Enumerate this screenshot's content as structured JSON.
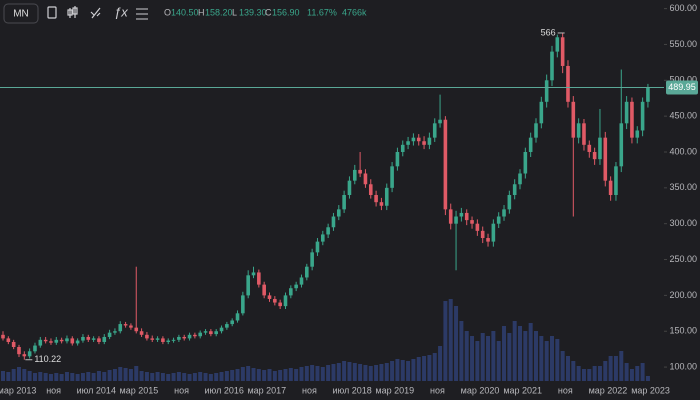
{
  "header": {
    "interval": "MN",
    "o": "O",
    "open": "140.50",
    "h": "H",
    "high": "158.20",
    "l": "L",
    "low": "139.30",
    "c": "C",
    "close": "156.90",
    "change": "11.67%",
    "volume": "4766k"
  },
  "chart_data": {
    "type": "candlestick",
    "up_color": "#3aa68b",
    "down_color": "#e05a66",
    "volume_color": "#2c3a66",
    "price_line_color": "#5aa897",
    "categories": [
      "мар 2013",
      null,
      null,
      null,
      null,
      null,
      null,
      null,
      "ноя",
      null,
      null,
      null,
      null,
      null,
      null,
      null,
      "июл 2014",
      null,
      null,
      null,
      null,
      null,
      null,
      null,
      "мар 2015",
      null,
      null,
      null,
      null,
      null,
      null,
      null,
      "ноя",
      null,
      null,
      null,
      null,
      null,
      null,
      null,
      "июл 2016",
      null,
      null,
      null,
      null,
      null,
      null,
      null,
      "мар 2017",
      null,
      null,
      null,
      null,
      null,
      null,
      null,
      "ноя",
      null,
      null,
      null,
      null,
      null,
      null,
      null,
      "июл 2018",
      null,
      null,
      null,
      null,
      null,
      null,
      null,
      "мар 2019",
      null,
      null,
      null,
      null,
      null,
      null,
      null,
      "ноя",
      null,
      null,
      null,
      null,
      null,
      null,
      null,
      "мар 2020",
      null,
      null,
      null,
      null,
      null,
      null,
      null,
      "мар 2021",
      null,
      null,
      null,
      null,
      null,
      null,
      null,
      "ноя",
      null,
      null,
      null,
      null,
      null,
      null,
      null,
      "мар 2022",
      null,
      null,
      null,
      null,
      null,
      null,
      null,
      "мар 2023",
      null
    ],
    "open": [
      145,
      140,
      135,
      128,
      118,
      115,
      122,
      130,
      138,
      136,
      134,
      138,
      136,
      140,
      133,
      137,
      142,
      138,
      140,
      135,
      142,
      148,
      150,
      160,
      158,
      155,
      150,
      145,
      140,
      138,
      140,
      135,
      137,
      138,
      142,
      140,
      145,
      143,
      148,
      150,
      146,
      150,
      155,
      160,
      165,
      175,
      200,
      228,
      232,
      215,
      200,
      195,
      190,
      185,
      200,
      210,
      215,
      225,
      240,
      260,
      275,
      285,
      295,
      310,
      320,
      340,
      360,
      375,
      370,
      355,
      340,
      330,
      325,
      350,
      380,
      400,
      410,
      415,
      420,
      415,
      410,
      420,
      440,
      445,
      320,
      300,
      310,
      315,
      305,
      300,
      290,
      280,
      275,
      300,
      310,
      320,
      340,
      355,
      370,
      400,
      420,
      440,
      470,
      500,
      540,
      560,
      520,
      470,
      420,
      440,
      410,
      400,
      390,
      420,
      360,
      340,
      380,
      440,
      470,
      420,
      430,
      470
    ],
    "high": [
      150,
      143,
      138,
      131,
      122,
      126,
      134,
      142,
      142,
      140,
      142,
      141,
      144,
      143,
      140,
      146,
      145,
      143,
      143,
      146,
      152,
      154,
      164,
      163,
      161,
      240,
      154,
      149,
      144,
      143,
      143,
      140,
      141,
      145,
      145,
      148,
      148,
      151,
      153,
      153,
      153,
      158,
      163,
      168,
      179,
      205,
      235,
      240,
      236,
      219,
      204,
      199,
      194,
      204,
      214,
      219,
      229,
      244,
      265,
      280,
      290,
      300,
      315,
      326,
      346,
      366,
      382,
      400,
      376,
      362,
      346,
      336,
      356,
      386,
      406,
      416,
      421,
      426,
      425,
      422,
      427,
      447,
      480,
      450,
      328,
      318,
      322,
      320,
      310,
      306,
      296,
      286,
      306,
      316,
      326,
      346,
      362,
      376,
      406,
      427,
      447,
      477,
      508,
      548,
      563.75,
      566,
      528,
      478,
      447,
      446,
      416,
      406,
      460,
      428,
      366,
      386,
      515,
      478,
      476,
      436,
      476,
      495
    ],
    "low": [
      137,
      132,
      125,
      114,
      110.22,
      112,
      119,
      127,
      133,
      131,
      131,
      133,
      133,
      130,
      130,
      134,
      135,
      135,
      132,
      132,
      139,
      145,
      147,
      155,
      152,
      147,
      142,
      137,
      135,
      135,
      132,
      132,
      134,
      135,
      137,
      137,
      140,
      140,
      145,
      143,
      143,
      147,
      152,
      157,
      162,
      172,
      196,
      224,
      211,
      196,
      191,
      186,
      181,
      181,
      196,
      206,
      211,
      221,
      235,
      255,
      270,
      280,
      290,
      305,
      315,
      335,
      355,
      365,
      350,
      335,
      324,
      319,
      319,
      344,
      374,
      394,
      404,
      409,
      409,
      404,
      404,
      414,
      434,
      312,
      292,
      235,
      303,
      298,
      293,
      283,
      273,
      268,
      268,
      294,
      304,
      314,
      334,
      348,
      363,
      393,
      413,
      433,
      462,
      492,
      532,
      510,
      462,
      310,
      412,
      402,
      392,
      382,
      382,
      352,
      332,
      332,
      372,
      432,
      412,
      412,
      422,
      462
    ],
    "close": [
      140,
      135,
      128,
      118,
      115,
      122,
      130,
      138,
      136,
      134,
      138,
      136,
      140,
      133,
      137,
      142,
      138,
      140,
      135,
      142,
      148,
      150,
      160,
      158,
      155,
      150,
      145,
      140,
      138,
      140,
      135,
      137,
      138,
      142,
      140,
      145,
      143,
      148,
      150,
      146,
      150,
      155,
      160,
      165,
      175,
      200,
      228,
      232,
      215,
      200,
      195,
      190,
      185,
      200,
      210,
      215,
      225,
      240,
      260,
      275,
      285,
      295,
      310,
      320,
      340,
      360,
      375,
      370,
      355,
      340,
      330,
      325,
      350,
      380,
      400,
      410,
      415,
      420,
      415,
      410,
      420,
      440,
      445,
      320,
      300,
      310,
      315,
      305,
      300,
      290,
      280,
      275,
      300,
      310,
      320,
      340,
      355,
      370,
      400,
      420,
      440,
      470,
      500,
      540,
      560,
      520,
      470,
      420,
      440,
      410,
      400,
      390,
      420,
      360,
      340,
      380,
      440,
      470,
      420,
      430,
      470,
      489.95
    ],
    "volume": [
      10,
      9,
      12,
      14,
      12,
      10,
      8,
      9,
      8,
      7,
      8,
      7,
      9,
      8,
      7,
      8,
      9,
      8,
      10,
      9,
      11,
      12,
      14,
      13,
      12,
      15,
      10,
      9,
      8,
      9,
      8,
      7,
      8,
      9,
      8,
      7,
      8,
      9,
      8,
      7,
      8,
      9,
      10,
      11,
      12,
      14,
      15,
      13,
      12,
      11,
      12,
      10,
      11,
      12,
      13,
      12,
      14,
      15,
      16,
      15,
      14,
      16,
      17,
      18,
      20,
      19,
      18,
      17,
      16,
      15,
      16,
      17,
      18,
      20,
      22,
      21,
      20,
      22,
      24,
      25,
      26,
      28,
      35,
      80,
      82,
      75,
      60,
      50,
      45,
      40,
      48,
      45,
      50,
      40,
      55,
      48,
      60,
      55,
      50,
      58,
      50,
      45,
      40,
      45,
      42,
      30,
      25,
      20,
      15,
      12,
      12,
      15,
      15,
      20,
      25,
      25,
      30,
      18,
      12,
      15,
      18,
      5
    ],
    "ylim": [
      75,
      612
    ],
    "yticks": [
      {
        "value": 100,
        "label": "100.00"
      },
      {
        "value": 150,
        "label": "150.00"
      },
      {
        "value": 200,
        "label": "200.00"
      },
      {
        "value": 250,
        "label": "250.00"
      },
      {
        "value": 300,
        "label": "300.00"
      },
      {
        "value": 350,
        "label": "350.00"
      },
      {
        "value": 400,
        "label": "400.00"
      },
      {
        "value": 450,
        "label": "450.00"
      },
      {
        "value": 500,
        "label": "500.00"
      },
      {
        "value": 550,
        "label": "550.00"
      },
      {
        "value": 600,
        "label": "600.00"
      }
    ]
  }
}
